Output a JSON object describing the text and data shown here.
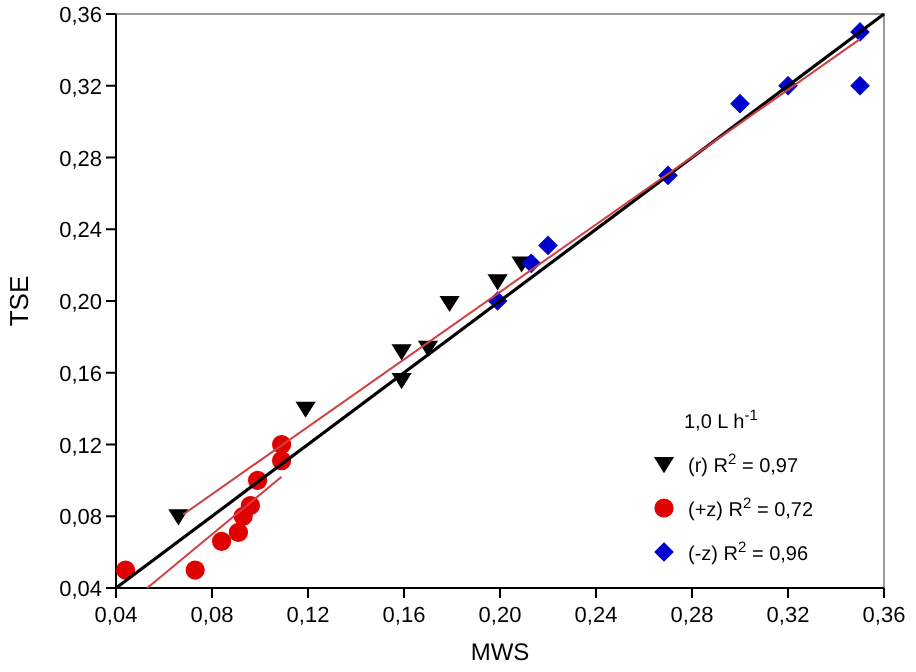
{
  "chart_data": {
    "type": "scatter",
    "xlabel": "MWS",
    "ylabel": "TSE",
    "legend_title": "1,0 L h$^{-1}$",
    "legend": "bottom right",
    "grid": false,
    "xlim": [
      0.04,
      0.36
    ],
    "ylim": [
      0.04,
      0.36
    ],
    "xticks": [
      {
        "value": 0.04,
        "label": "0,04"
      },
      {
        "value": 0.08,
        "label": "0,08"
      },
      {
        "value": 0.12,
        "label": "0,12"
      },
      {
        "value": 0.16,
        "label": "0,16"
      },
      {
        "value": 0.2,
        "label": "0,20"
      },
      {
        "value": 0.24,
        "label": "0,24"
      },
      {
        "value": 0.28,
        "label": "0,28"
      },
      {
        "value": 0.32,
        "label": "0,32"
      },
      {
        "value": 0.36,
        "label": "0,36"
      }
    ],
    "yticks": [
      {
        "value": 0.04,
        "label": "0,04"
      },
      {
        "value": 0.08,
        "label": "0,08"
      },
      {
        "value": 0.12,
        "label": "0,12"
      },
      {
        "value": 0.16,
        "label": "0,16"
      },
      {
        "value": 0.2,
        "label": "0,20"
      },
      {
        "value": 0.24,
        "label": "0,24"
      },
      {
        "value": 0.28,
        "label": "0,28"
      },
      {
        "value": 0.32,
        "label": "0,32"
      },
      {
        "value": 0.36,
        "label": "0,36"
      }
    ],
    "series": [
      {
        "name": "(r) R$^{2}$ = 0,97",
        "color": "#000000",
        "marker": "triangle",
        "x": [
          0.066,
          0.119,
          0.159,
          0.159,
          0.17,
          0.179,
          0.199,
          0.209
        ],
        "values": [
          0.08,
          0.14,
          0.172,
          0.156,
          0.174,
          0.199,
          0.211,
          0.221
        ]
      },
      {
        "name": "(+z) R$^{2}$ = 0,72",
        "color": "#e00000",
        "marker": "circle",
        "x": [
          0.044,
          0.073,
          0.084,
          0.091,
          0.093,
          0.096,
          0.099,
          0.109,
          0.109
        ],
        "values": [
          0.05,
          0.05,
          0.066,
          0.071,
          0.08,
          0.086,
          0.1,
          0.12,
          0.111
        ]
      },
      {
        "name": "(-z) R$^{2}$ = 0,96",
        "color": "#0000cc",
        "marker": "diamond",
        "x": [
          0.199,
          0.213,
          0.22,
          0.27,
          0.3,
          0.32,
          0.35,
          0.35
        ],
        "values": [
          0.2,
          0.221,
          0.231,
          0.27,
          0.31,
          0.32,
          0.35,
          0.32
        ]
      },
      {
        "type": "line",
        "color": "#000000",
        "x": [
          0.04,
          0.36
        ],
        "values": [
          0.04,
          0.36
        ]
      },
      {
        "type": "line",
        "color": "#d04040",
        "x": [
          0.068,
          0.35
        ],
        "values": [
          0.081,
          0.346
        ]
      },
      {
        "type": "line",
        "color": "#d04040",
        "x": [
          0.053,
          0.109
        ],
        "values": [
          0.04,
          0.102
        ]
      }
    ]
  }
}
